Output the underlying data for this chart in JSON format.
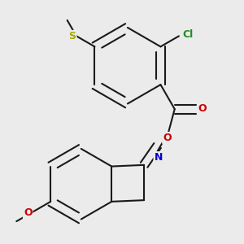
{
  "background_color": "#ebebeb",
  "atom_colors": {
    "C": "#1a1a1a",
    "Cl": "#228B22",
    "O": "#cc0000",
    "N": "#0000cc",
    "S": "#aaaa00"
  },
  "figsize": [
    3.0,
    3.0
  ],
  "dpi": 100,
  "lw": 1.5,
  "fontsize": 9
}
